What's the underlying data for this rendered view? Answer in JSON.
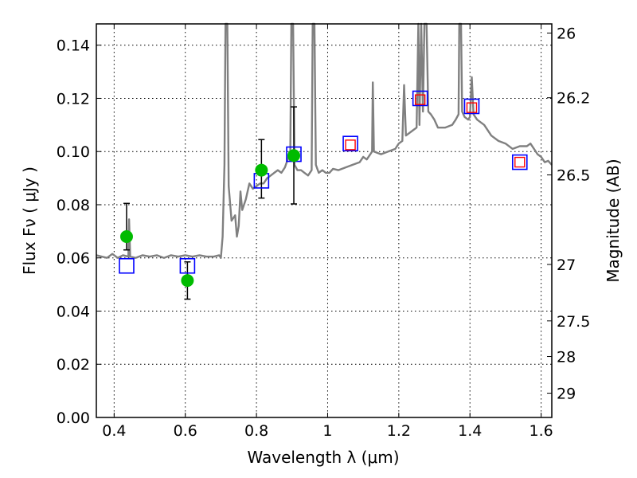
{
  "chart_data": {
    "type": "line",
    "xlabel": "Wavelength  λ (μm)",
    "ylabel": "Flux  Fν  ( μJy )",
    "y2label": "Magnitude (AB)",
    "xlim": [
      0.35,
      1.63
    ],
    "ylim": [
      0.0,
      0.148
    ],
    "grid": true,
    "x_ticks": [
      0.4,
      0.6,
      0.8,
      1.0,
      1.2,
      1.4,
      1.6
    ],
    "x_tick_labels": [
      "0.4",
      "0.6",
      "0.8",
      "1",
      "1.2",
      "1.4",
      "1.6"
    ],
    "y_ticks": [
      0.0,
      0.02,
      0.04,
      0.06,
      0.08,
      0.1,
      0.12,
      0.14
    ],
    "y_tick_labels": [
      "0.00",
      "0.02",
      "0.04",
      "0.06",
      "0.08",
      "0.10",
      "0.12",
      "0.14"
    ],
    "y2_ticks_ab": [
      26,
      26.2,
      26.5,
      27,
      27.5,
      28,
      29
    ],
    "y2_tick_labels": [
      "26",
      "26.2",
      "26.5",
      "27",
      "27.5",
      "28",
      "29"
    ],
    "series": [
      {
        "kind": "spectrum",
        "color": "#808080",
        "points": [
          [
            0.35,
            0.061
          ],
          [
            0.365,
            0.0605
          ],
          [
            0.38,
            0.06
          ],
          [
            0.395,
            0.0615
          ],
          [
            0.41,
            0.06
          ],
          [
            0.425,
            0.061
          ],
          [
            0.44,
            0.0605
          ],
          [
            0.442,
            0.0745
          ],
          [
            0.445,
            0.0605
          ],
          [
            0.46,
            0.06
          ],
          [
            0.48,
            0.061
          ],
          [
            0.5,
            0.0605
          ],
          [
            0.52,
            0.061
          ],
          [
            0.54,
            0.06
          ],
          [
            0.56,
            0.061
          ],
          [
            0.58,
            0.0605
          ],
          [
            0.6,
            0.061
          ],
          [
            0.62,
            0.0605
          ],
          [
            0.64,
            0.061
          ],
          [
            0.66,
            0.0605
          ],
          [
            0.68,
            0.0605
          ],
          [
            0.695,
            0.061
          ],
          [
            0.7,
            0.06
          ],
          [
            0.705,
            0.068
          ],
          [
            0.71,
            0.095
          ],
          [
            0.713,
            0.148
          ],
          [
            0.718,
            0.148
          ],
          [
            0.722,
            0.087
          ],
          [
            0.73,
            0.074
          ],
          [
            0.74,
            0.076
          ],
          [
            0.745,
            0.068
          ],
          [
            0.75,
            0.072
          ],
          [
            0.755,
            0.085
          ],
          [
            0.76,
            0.078
          ],
          [
            0.77,
            0.082
          ],
          [
            0.78,
            0.088
          ],
          [
            0.79,
            0.086
          ],
          [
            0.8,
            0.087
          ],
          [
            0.81,
            0.088
          ],
          [
            0.82,
            0.088
          ],
          [
            0.83,
            0.09
          ],
          [
            0.84,
            0.091
          ],
          [
            0.85,
            0.092
          ],
          [
            0.86,
            0.093
          ],
          [
            0.87,
            0.092
          ],
          [
            0.88,
            0.094
          ],
          [
            0.885,
            0.096
          ],
          [
            0.89,
            0.098
          ],
          [
            0.895,
            0.0965
          ],
          [
            0.898,
            0.148
          ],
          [
            0.903,
            0.148
          ],
          [
            0.907,
            0.095
          ],
          [
            0.915,
            0.093
          ],
          [
            0.925,
            0.093
          ],
          [
            0.935,
            0.092
          ],
          [
            0.945,
            0.091
          ],
          [
            0.955,
            0.093
          ],
          [
            0.958,
            0.148
          ],
          [
            0.963,
            0.148
          ],
          [
            0.967,
            0.095
          ],
          [
            0.975,
            0.092
          ],
          [
            0.985,
            0.093
          ],
          [
            0.995,
            0.092
          ],
          [
            1.005,
            0.092
          ],
          [
            1.015,
            0.0935
          ],
          [
            1.03,
            0.093
          ],
          [
            1.05,
            0.094
          ],
          [
            1.07,
            0.095
          ],
          [
            1.09,
            0.096
          ],
          [
            1.1,
            0.098
          ],
          [
            1.11,
            0.097
          ],
          [
            1.12,
            0.099
          ],
          [
            1.125,
            0.1
          ],
          [
            1.127,
            0.126
          ],
          [
            1.13,
            0.1
          ],
          [
            1.15,
            0.099
          ],
          [
            1.17,
            0.1
          ],
          [
            1.19,
            0.101
          ],
          [
            1.2,
            0.103
          ],
          [
            1.21,
            0.104
          ],
          [
            1.215,
            0.125
          ],
          [
            1.22,
            0.106
          ],
          [
            1.24,
            0.108
          ],
          [
            1.25,
            0.109
          ],
          [
            1.255,
            0.148
          ],
          [
            1.258,
            0.11
          ],
          [
            1.263,
            0.148
          ],
          [
            1.268,
            0.115
          ],
          [
            1.272,
            0.148
          ],
          [
            1.278,
            0.148
          ],
          [
            1.283,
            0.115
          ],
          [
            1.29,
            0.114
          ],
          [
            1.3,
            0.112
          ],
          [
            1.31,
            0.109
          ],
          [
            1.33,
            0.109
          ],
          [
            1.35,
            0.11
          ],
          [
            1.36,
            0.112
          ],
          [
            1.368,
            0.114
          ],
          [
            1.37,
            0.148
          ],
          [
            1.375,
            0.148
          ],
          [
            1.378,
            0.115
          ],
          [
            1.385,
            0.113
          ],
          [
            1.395,
            0.112
          ],
          [
            1.4,
            0.113
          ],
          [
            1.405,
            0.128
          ],
          [
            1.41,
            0.114
          ],
          [
            1.42,
            0.112
          ],
          [
            1.44,
            0.11
          ],
          [
            1.46,
            0.106
          ],
          [
            1.48,
            0.104
          ],
          [
            1.5,
            0.103
          ],
          [
            1.52,
            0.101
          ],
          [
            1.54,
            0.102
          ],
          [
            1.56,
            0.102
          ],
          [
            1.57,
            0.103
          ],
          [
            1.58,
            0.101
          ],
          [
            1.59,
            0.099
          ],
          [
            1.6,
            0.098
          ],
          [
            1.61,
            0.096
          ],
          [
            1.62,
            0.0965
          ],
          [
            1.63,
            0.095
          ]
        ]
      },
      {
        "kind": "measured",
        "color": "#00bb00",
        "points": [
          {
            "x": 0.435,
            "y": 0.068,
            "err_low": 0.063,
            "err_high": 0.0805
          },
          {
            "x": 0.606,
            "y": 0.0515,
            "err_low": 0.0445,
            "err_high": 0.0585
          },
          {
            "x": 0.814,
            "y": 0.093,
            "err_low": 0.0825,
            "err_high": 0.1045
          },
          {
            "x": 0.905,
            "y": 0.0985,
            "err_low": 0.0803,
            "err_high": 0.1168
          }
        ]
      },
      {
        "kind": "model-blue",
        "color": "#0000ff",
        "points": [
          {
            "x": 0.435,
            "y": 0.057
          },
          {
            "x": 0.606,
            "y": 0.057
          },
          {
            "x": 0.814,
            "y": 0.089
          },
          {
            "x": 0.905,
            "y": 0.099
          },
          {
            "x": 1.064,
            "y": 0.103
          },
          {
            "x": 1.26,
            "y": 0.12
          },
          {
            "x": 1.405,
            "y": 0.117
          },
          {
            "x": 1.54,
            "y": 0.096
          }
        ]
      },
      {
        "kind": "model-red",
        "color": "#ff0000",
        "points": [
          {
            "x": 1.064,
            "y": 0.1025
          },
          {
            "x": 1.26,
            "y": 0.1195
          },
          {
            "x": 1.405,
            "y": 0.1165
          },
          {
            "x": 1.54,
            "y": 0.096
          }
        ]
      }
    ]
  }
}
